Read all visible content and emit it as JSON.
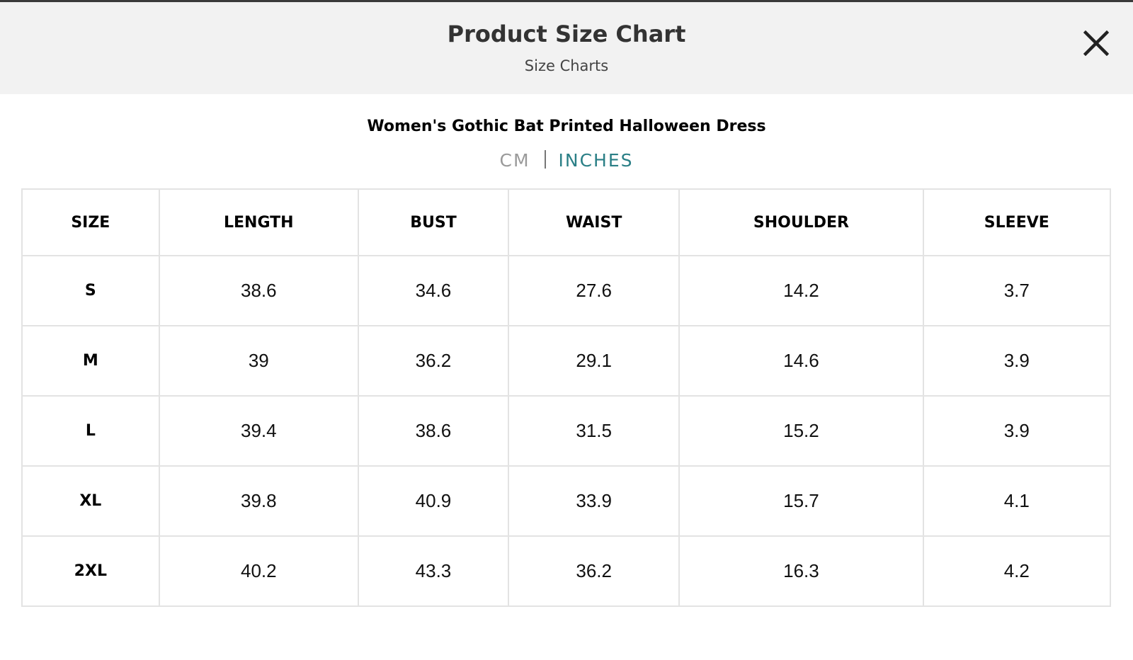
{
  "header": {
    "title": "Product Size Chart",
    "subtitle": "Size Charts"
  },
  "product": "Women's Gothic Bat Printed Halloween Dress",
  "units": [
    "CM",
    "INCHES"
  ],
  "table": {
    "columns": [
      "SIZE",
      "LENGTH",
      "BUST",
      "WAIST",
      "SHOULDER",
      "SLEEVE"
    ],
    "rows": [
      [
        "S",
        "38.6",
        "34.6",
        "27.6",
        "14.2",
        "3.7"
      ],
      [
        "M",
        "39",
        "36.2",
        "29.1",
        "14.6",
        "3.9"
      ],
      [
        "L",
        "39.4",
        "38.6",
        "31.5",
        "15.2",
        "3.9"
      ],
      [
        "XL",
        "39.8",
        "40.9",
        "33.9",
        "15.7",
        "4.1"
      ],
      [
        "2XL",
        "40.2",
        "43.3",
        "36.2",
        "16.3",
        "4.2"
      ]
    ]
  }
}
